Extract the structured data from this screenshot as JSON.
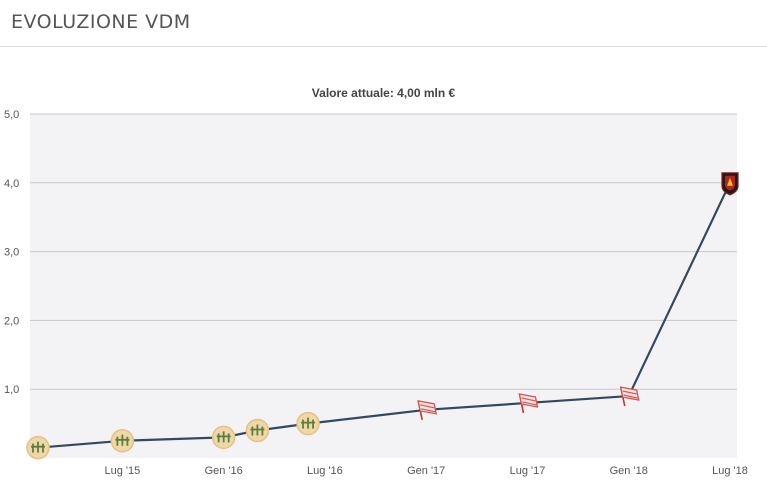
{
  "header": {
    "title": "EVOLUZIONE VDM"
  },
  "chart_data": {
    "type": "line",
    "subtitle": "Valore attuale: 4,00 mln €",
    "ylim": [
      0,
      5
    ],
    "y_ticks": [
      "5,0",
      "4,0",
      "3,0",
      "2,0",
      "1,0"
    ],
    "x_ticks": [
      "Lug '15",
      "Gen '16",
      "Lug '16",
      "Gen '17",
      "Lug '17",
      "Gen '18",
      "Lug '18"
    ],
    "grid": true,
    "line_color": "#34495e",
    "points": [
      {
        "x": "2015-02",
        "y": 0.15,
        "club": "wheat-badge"
      },
      {
        "x": "2015-07",
        "y": 0.25,
        "club": "wheat-badge"
      },
      {
        "x": "2016-01",
        "y": 0.3,
        "club": "wheat-badge"
      },
      {
        "x": "2016-03",
        "y": 0.4,
        "club": "wheat-badge"
      },
      {
        "x": "2016-06",
        "y": 0.5,
        "club": "wheat-badge"
      },
      {
        "x": "2017-01",
        "y": 0.7,
        "club": "red-flag-badge"
      },
      {
        "x": "2017-07",
        "y": 0.8,
        "club": "red-flag-badge"
      },
      {
        "x": "2018-01",
        "y": 0.9,
        "club": "red-flag-badge"
      },
      {
        "x": "2018-07",
        "y": 4.0,
        "club": "shield-badge"
      }
    ]
  }
}
